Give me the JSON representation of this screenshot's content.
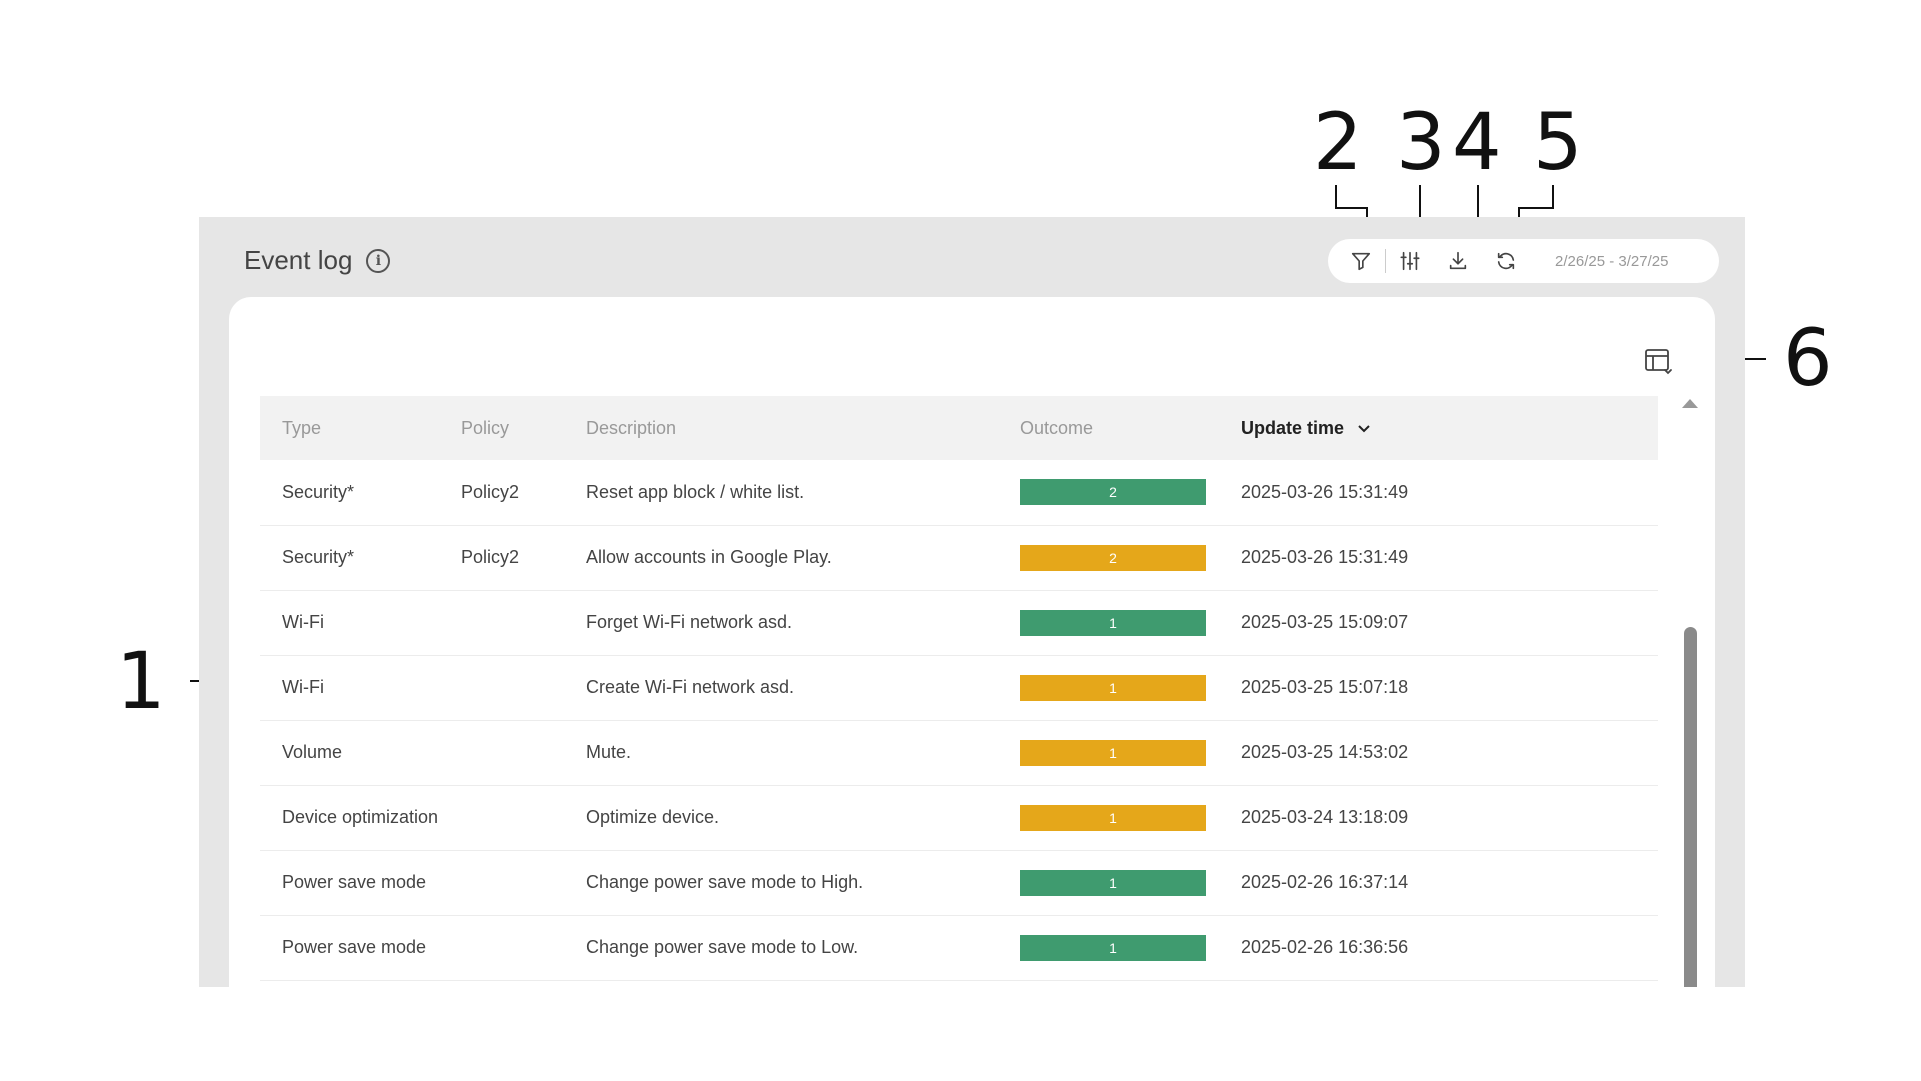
{
  "callouts": [
    "1",
    "2",
    "3",
    "4",
    "5",
    "6"
  ],
  "panel": {
    "title": "Event log",
    "info_icon": "info-icon",
    "toolbar": {
      "filter_icon": "filter-icon",
      "settings_icon": "sliders-icon",
      "download_icon": "download-icon",
      "refresh_icon": "refresh-icon",
      "date_range": "2/26/25 - 3/27/25"
    },
    "layout_icon": "table-layout-icon"
  },
  "table": {
    "columns": [
      "Type",
      "Policy",
      "Description",
      "Outcome",
      "Update time"
    ],
    "sorted_column_icon": "chevron-down-icon",
    "rows": [
      {
        "type": "Security*",
        "policy": "Policy2",
        "description": "Reset app block / white list.",
        "outcome": "2",
        "status": "green",
        "time": "2025-03-26 15:31:49"
      },
      {
        "type": "Security*",
        "policy": "Policy2",
        "description": "Allow accounts in Google Play.",
        "outcome": "2",
        "status": "amber",
        "time": "2025-03-26 15:31:49"
      },
      {
        "type": "Wi-Fi",
        "policy": "",
        "description": "Forget Wi-Fi network asd.",
        "outcome": "1",
        "status": "green",
        "time": "2025-03-25 15:09:07"
      },
      {
        "type": "Wi-Fi",
        "policy": "",
        "description": "Create Wi-Fi network asd.",
        "outcome": "1",
        "status": "amber",
        "time": "2025-03-25 15:07:18"
      },
      {
        "type": "Volume",
        "policy": "",
        "description": "Mute.",
        "outcome": "1",
        "status": "amber",
        "time": "2025-03-25 14:53:02"
      },
      {
        "type": "Device optimization",
        "policy": "",
        "description": "Optimize device.",
        "outcome": "1",
        "status": "amber",
        "time": "2025-03-24 13:18:09"
      },
      {
        "type": "Power save mode",
        "policy": "",
        "description": "Change power save mode to High.",
        "outcome": "1",
        "status": "green",
        "time": "2025-02-26 16:37:14"
      },
      {
        "type": "Power save mode",
        "policy": "",
        "description": "Change power save mode to Low.",
        "outcome": "1",
        "status": "green",
        "time": "2025-02-26 16:36:56"
      }
    ]
  },
  "colors": {
    "green": "#3f9b6f",
    "amber": "#e5a71a",
    "panel_bg": "#e6e6e6"
  }
}
